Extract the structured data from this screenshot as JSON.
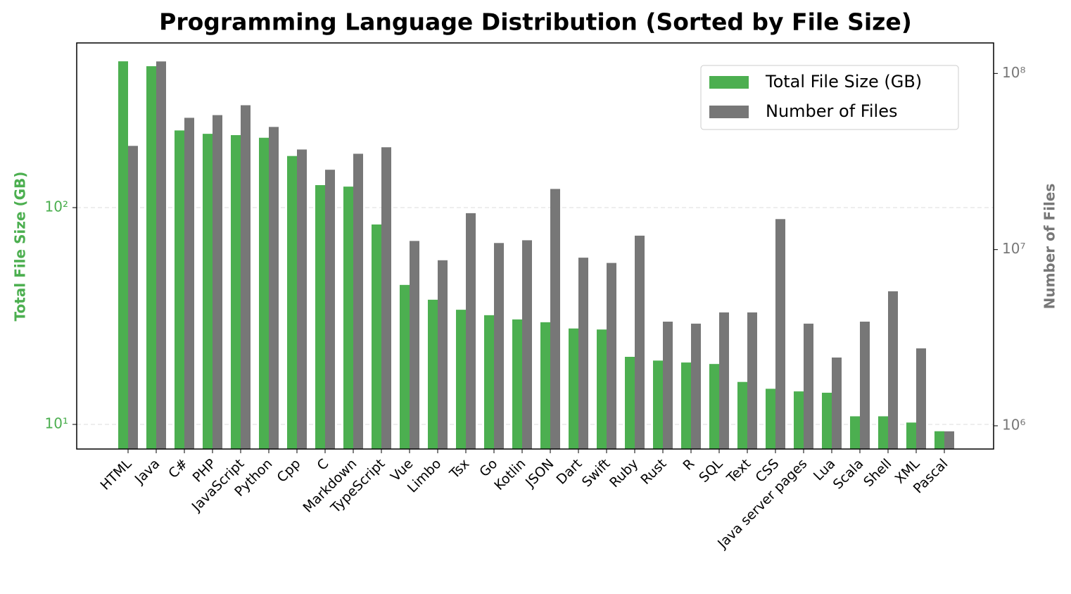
{
  "chart_data": {
    "type": "bar",
    "title": "Programming Language Distribution (Sorted by File Size)",
    "y_label": "Total File Size (GB)",
    "y2_label": "Number of Files",
    "categories": [
      "HTML",
      "Java",
      "C#",
      "PHP",
      "JavaScript",
      "Python",
      "Cpp",
      "C",
      "Markdown",
      "TypeScript",
      "Vue",
      "Limbo",
      "Tsx",
      "Go",
      "Kotlin",
      "JSON",
      "Dart",
      "Swift",
      "Ruby",
      "Rust",
      "R",
      "SQL",
      "Text",
      "CSS",
      "Java server pages",
      "Lua",
      "Scala",
      "Shell",
      "XML",
      "Pascal"
    ],
    "series": [
      {
        "name": "Total File Size (GB)",
        "color": "#4caf50",
        "axis": "y",
        "values": [
          473,
          449,
          227,
          219,
          216,
          210,
          173,
          127,
          125,
          83.6,
          44,
          37.6,
          33.8,
          31.9,
          30.5,
          29.6,
          27.7,
          27.4,
          20.5,
          19.7,
          19.3,
          19.0,
          15.7,
          14.6,
          14.2,
          14.0,
          10.9,
          10.9,
          10.2,
          9.3
        ]
      },
      {
        "name": "Number of Files",
        "color": "#777777",
        "axis": "y2",
        "values": [
          38800000,
          117000000,
          56000000,
          58000000,
          66000000,
          49700000,
          37000000,
          28400000,
          35000000,
          38100000,
          11200000,
          8700000,
          16100000,
          10900000,
          11300000,
          22100000,
          9000000,
          8400000,
          12000000,
          3900000,
          3800000,
          4400000,
          4400000,
          14900000,
          3800000,
          2440000,
          3900000,
          5800000,
          2750000,
          930000
        ]
      }
    ],
    "ylog": true,
    "y2log": true,
    "ylim": [
      7.7,
      575
    ],
    "yticks": [
      {
        "value": 10,
        "label": "10¹"
      },
      {
        "value": 100,
        "label": "10²"
      }
    ],
    "y2lim": [
      738000,
      149000000
    ],
    "y2ticks": [
      {
        "value": 1000000,
        "label": "10⁶"
      },
      {
        "value": 10000000,
        "label": "10⁷"
      },
      {
        "value": 100000000,
        "label": "10⁸"
      }
    ],
    "grid": true,
    "legend": "upper right"
  }
}
